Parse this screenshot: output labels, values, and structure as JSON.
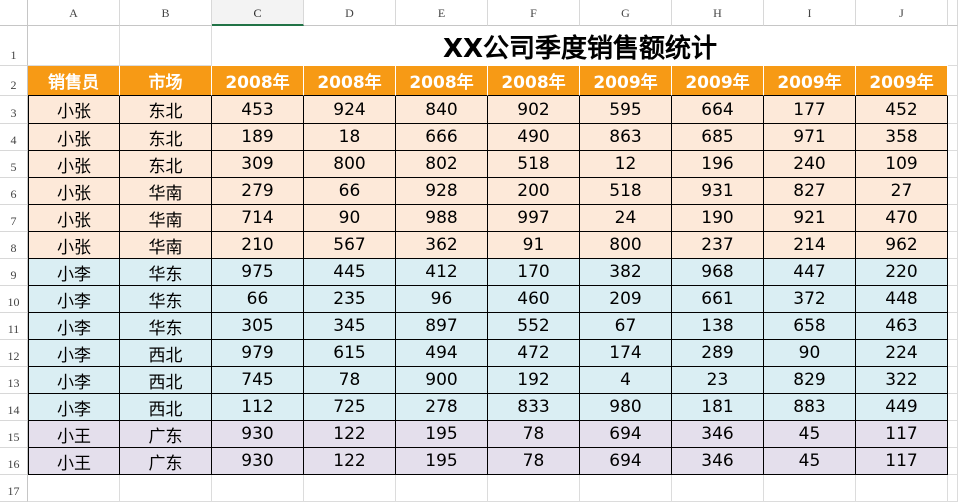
{
  "columns": [
    "A",
    "B",
    "C",
    "D",
    "E",
    "F",
    "G",
    "H",
    "I",
    "J"
  ],
  "rows": [
    "1",
    "2",
    "3",
    "4",
    "5",
    "6",
    "7",
    "8",
    "9",
    "10",
    "11",
    "12",
    "13",
    "14",
    "15",
    "16",
    "17"
  ],
  "title": "XX公司季度销售额统计",
  "headers": [
    "销售员",
    "市场",
    "2008年",
    "2008年",
    "2008年",
    "2008年",
    "2009年",
    "2009年",
    "2009年",
    "2009年"
  ],
  "data": [
    [
      "小张",
      "东北",
      "453",
      "924",
      "840",
      "902",
      "595",
      "664",
      "177",
      "452"
    ],
    [
      "小张",
      "东北",
      "189",
      "18",
      "666",
      "490",
      "863",
      "685",
      "971",
      "358"
    ],
    [
      "小张",
      "东北",
      "309",
      "800",
      "802",
      "518",
      "12",
      "196",
      "240",
      "109"
    ],
    [
      "小张",
      "华南",
      "279",
      "66",
      "928",
      "200",
      "518",
      "931",
      "827",
      "27"
    ],
    [
      "小张",
      "华南",
      "714",
      "90",
      "988",
      "997",
      "24",
      "190",
      "921",
      "470"
    ],
    [
      "小张",
      "华南",
      "210",
      "567",
      "362",
      "91",
      "800",
      "237",
      "214",
      "962"
    ],
    [
      "小李",
      "华东",
      "975",
      "445",
      "412",
      "170",
      "382",
      "968",
      "447",
      "220"
    ],
    [
      "小李",
      "华东",
      "66",
      "235",
      "96",
      "460",
      "209",
      "661",
      "372",
      "448"
    ],
    [
      "小李",
      "华东",
      "305",
      "345",
      "897",
      "552",
      "67",
      "138",
      "658",
      "463"
    ],
    [
      "小李",
      "西北",
      "979",
      "615",
      "494",
      "472",
      "174",
      "289",
      "90",
      "224"
    ],
    [
      "小李",
      "西北",
      "745",
      "78",
      "900",
      "192",
      "4",
      "23",
      "829",
      "322"
    ],
    [
      "小李",
      "西北",
      "112",
      "725",
      "278",
      "833",
      "980",
      "181",
      "883",
      "449"
    ],
    [
      "小王",
      "广东",
      "930",
      "122",
      "195",
      "78",
      "694",
      "346",
      "45",
      "117"
    ],
    [
      "小王",
      "广东",
      "930",
      "122",
      "195",
      "78",
      "694",
      "346",
      "45",
      "117"
    ]
  ],
  "colors": {
    "header": "#f79a15",
    "group_zhang": "#fde9d9",
    "group_li": "#daeef3",
    "group_wang": "#e4dfec",
    "selected_column_accent": "#217346"
  }
}
